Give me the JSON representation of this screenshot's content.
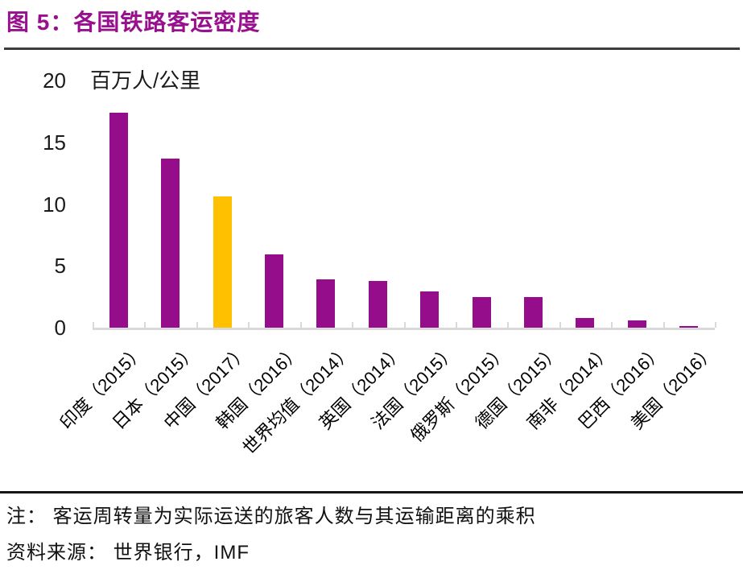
{
  "figure": {
    "title": "图 5：各国铁路客运密度",
    "note": "注： 客运周转量为实际运送的旅客人数与其运输距离的乘积",
    "source": "资料来源： 世界银行，IMF"
  },
  "colors": {
    "title_purple": "#98108E",
    "bar_purple": "#960D8C",
    "highlight_gold": "#FFC000",
    "axis_gray": "#D9D9D9",
    "rule_dark": "#3C3C3C"
  },
  "chart_data": {
    "type": "bar",
    "title": "各国铁路客运密度",
    "unit_label": "百万人/公里",
    "categories": [
      "印度（2015）",
      "日本（2015）",
      "中国（2017）",
      "韩国（2016）",
      "世界均值（2014）",
      "英国（2014）",
      "法国（2015）",
      "俄罗斯（2015）",
      "德国（2015）",
      "南非（2014）",
      "巴西（2016）",
      "美国（2016）"
    ],
    "values": [
      17.4,
      13.7,
      10.6,
      5.9,
      3.9,
      3.8,
      2.9,
      2.5,
      2.5,
      0.8,
      0.6,
      0.15
    ],
    "highlight_index": 2,
    "bar_color": "#960D8C",
    "highlight_color": "#FFC000",
    "xlabel": "",
    "ylabel": "百万人/公里",
    "ylim": [
      0,
      20
    ],
    "yticks": [
      0,
      5,
      10,
      15,
      20
    ],
    "grid": false,
    "legend": null,
    "x_label_rotation_deg": 45
  }
}
